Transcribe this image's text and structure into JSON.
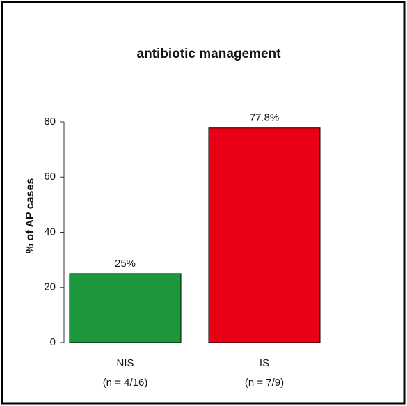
{
  "chart_data": {
    "type": "bar",
    "title": "antibiotic management",
    "y_label": "% of AP cases",
    "categories": [
      "NIS",
      "IS"
    ],
    "category_sublabels": [
      "(n = 4/16)",
      "(n = 7/9)"
    ],
    "values": [
      25,
      77.8
    ],
    "value_labels": [
      "25%",
      "77.8%"
    ],
    "colors": [
      "#1d973c",
      "#ea0016"
    ],
    "ylim": [
      0,
      80
    ],
    "yticks": [
      0,
      20,
      40,
      60,
      80
    ],
    "grid": false
  }
}
